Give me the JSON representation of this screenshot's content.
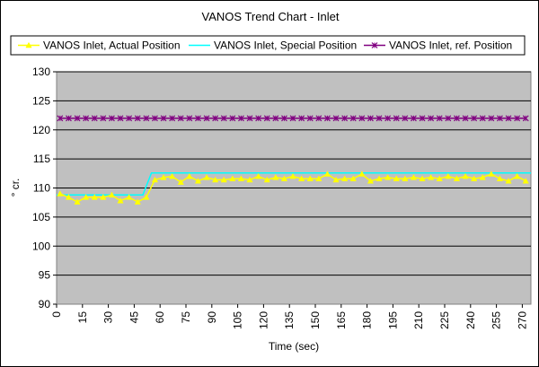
{
  "chart_data": {
    "type": "line",
    "title": "VANOS Trend Chart - Inlet",
    "xlabel": "Time (sec)",
    "ylabel": "° cr.",
    "xlim": [
      0,
      275
    ],
    "ylim": [
      90,
      130
    ],
    "xticks": [
      0,
      15,
      30,
      45,
      60,
      75,
      90,
      105,
      120,
      135,
      150,
      165,
      180,
      195,
      210,
      225,
      240,
      255,
      270
    ],
    "yticks": [
      90,
      95,
      100,
      105,
      110,
      115,
      120,
      125,
      130
    ],
    "grid": "horizontal",
    "legend_position": "top",
    "plot_background": "#c0c0c0",
    "series": [
      {
        "name": "VANOS Inlet, Actual Position",
        "color": "#ffff00",
        "marker": "triangle",
        "x": [
          2,
          7,
          12,
          17,
          22,
          27,
          32,
          37,
          42,
          47,
          52,
          57,
          62,
          67,
          72,
          77,
          82,
          87,
          92,
          97,
          102,
          107,
          112,
          117,
          122,
          127,
          132,
          137,
          142,
          147,
          152,
          157,
          162,
          167,
          172,
          177,
          182,
          187,
          192,
          197,
          202,
          207,
          212,
          217,
          222,
          227,
          232,
          237,
          242,
          247,
          252,
          257,
          262,
          267,
          272
        ],
        "values": [
          109.0,
          108.4,
          107.6,
          108.4,
          108.4,
          108.4,
          108.8,
          107.8,
          108.4,
          107.6,
          108.4,
          111.4,
          111.8,
          112.0,
          111.0,
          112.0,
          111.2,
          111.8,
          111.4,
          111.4,
          111.6,
          111.6,
          111.4,
          112.0,
          111.4,
          111.8,
          111.6,
          112.0,
          111.6,
          111.6,
          111.6,
          112.4,
          111.4,
          111.6,
          111.6,
          112.4,
          111.2,
          111.6,
          111.8,
          111.6,
          111.6,
          111.8,
          111.6,
          111.8,
          111.6,
          112.0,
          111.6,
          112.0,
          111.6,
          111.8,
          112.4,
          111.6,
          111.2,
          112.0,
          111.2
        ]
      },
      {
        "name": "VANOS Inlet, Special Position",
        "color": "#00ffff",
        "marker": "none",
        "x": [
          0,
          50,
          55,
          275
        ],
        "values": [
          108.8,
          108.8,
          112.6,
          112.6
        ]
      },
      {
        "name": "VANOS Inlet, ref. Position",
        "color": "#800080",
        "marker": "x",
        "x": [
          2,
          7,
          12,
          17,
          22,
          27,
          32,
          37,
          42,
          47,
          52,
          57,
          62,
          67,
          72,
          77,
          82,
          87,
          92,
          97,
          102,
          107,
          112,
          117,
          122,
          127,
          132,
          137,
          142,
          147,
          152,
          157,
          162,
          167,
          172,
          177,
          182,
          187,
          192,
          197,
          202,
          207,
          212,
          217,
          222,
          227,
          232,
          237,
          242,
          247,
          252,
          257,
          262,
          267,
          272
        ],
        "values": [
          122,
          122,
          122,
          122,
          122,
          122,
          122,
          122,
          122,
          122,
          122,
          122,
          122,
          122,
          122,
          122,
          122,
          122,
          122,
          122,
          122,
          122,
          122,
          122,
          122,
          122,
          122,
          122,
          122,
          122,
          122,
          122,
          122,
          122,
          122,
          122,
          122,
          122,
          122,
          122,
          122,
          122,
          122,
          122,
          122,
          122,
          122,
          122,
          122,
          122,
          122,
          122,
          122,
          122,
          122
        ]
      }
    ]
  }
}
